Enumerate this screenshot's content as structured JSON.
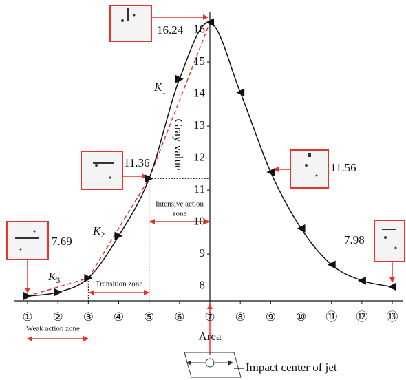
{
  "chart_data": {
    "type": "line",
    "y_label": "Gray value",
    "x_label": "Area",
    "categories": [
      "①",
      "②",
      "③",
      "④",
      "⑤",
      "⑥",
      "⑦",
      "⑧",
      "⑨",
      "⑩",
      "⑪",
      "⑫",
      "⑬"
    ],
    "values": [
      7.69,
      7.81,
      8.25,
      9.57,
      11.36,
      14.47,
      16.24,
      14.05,
      11.56,
      9.8,
      8.67,
      8.17,
      7.98
    ],
    "value_labels": [
      "7.69",
      null,
      null,
      null,
      "11.36",
      null,
      "16.24",
      null,
      "11.56",
      null,
      null,
      null,
      "7.98"
    ],
    "color": "#111111",
    "ylim": [
      7.54,
      16.4
    ],
    "yticks": [
      8,
      9,
      10,
      11,
      12,
      13,
      14,
      15,
      16
    ],
    "slopes": [
      {
        "symbol": "K",
        "subscript": "1"
      },
      {
        "symbol": "K",
        "subscript": "2"
      },
      {
        "symbol": "K",
        "subscript": "3"
      }
    ],
    "slope_color": "#e8332a",
    "zones": {
      "weak": "Weak action zone",
      "transition": "Transition zone",
      "intensive_line1": "Intensive action",
      "intensive_line2": "zone"
    },
    "impact_label": "Impact center of jet"
  }
}
